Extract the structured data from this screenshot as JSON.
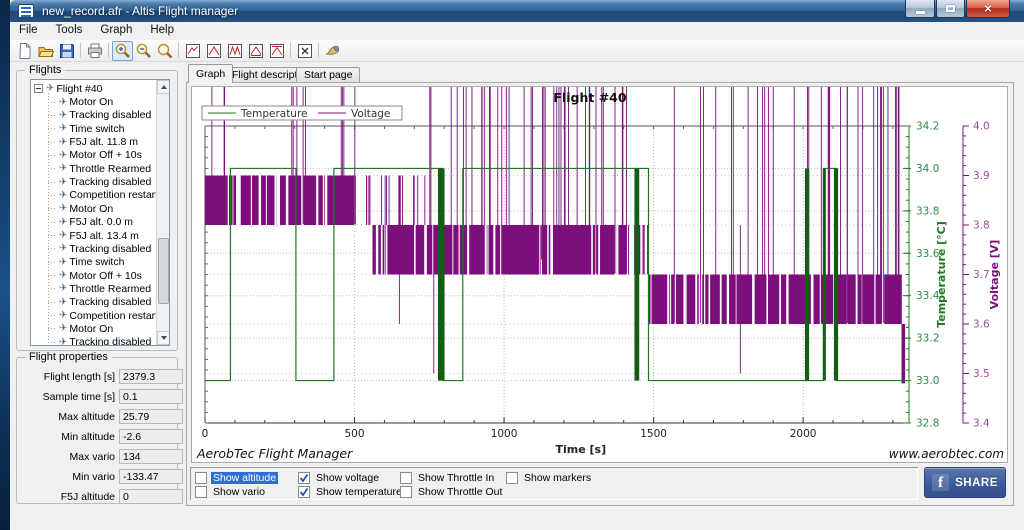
{
  "window": {
    "title": "new_record.afr - Altis Flight manager",
    "controls": [
      "minimize",
      "maximize",
      "close"
    ]
  },
  "menu": {
    "items": [
      "File",
      "Tools",
      "Graph",
      "Help"
    ]
  },
  "toolbar": {
    "buttons": [
      "new-file",
      "open-file",
      "save-file",
      "|",
      "print",
      "|",
      "zoom-in",
      "zoom-out",
      "zoom-fit",
      "|",
      "graph-line",
      "graph-peak",
      "graph-double-peak",
      "graph-peak-floor",
      "graph-peak-cap",
      "|",
      "clear-graph",
      "|",
      "export-image"
    ],
    "active_button": "zoom-in"
  },
  "flights_panel": {
    "title": "Flights",
    "tree_root": "Flight #40",
    "tree_children": [
      "Motor On",
      "Tracking disabled",
      "Time switch",
      "F5J alt. 11.8 m",
      "Motor Off + 10s",
      "Throttle Rearmed",
      "Tracking disabled",
      "Competition restart",
      "Motor On",
      "F5J alt. 0.0 m",
      "F5J alt. 13.4 m",
      "Tracking disabled",
      "Time switch",
      "Motor Off + 10s",
      "Throttle Rearmed",
      "Tracking disabled",
      "Competition restart",
      "Motor On",
      "Tracking disabled"
    ]
  },
  "properties_panel": {
    "title": "Flight properties",
    "fields": [
      {
        "label": "Flight length [s]",
        "value": "2379.3"
      },
      {
        "label": "Sample time [s]",
        "value": "0.1"
      },
      {
        "label": "Max altitude",
        "value": "25.79"
      },
      {
        "label": "Min altitude",
        "value": "-2.6"
      },
      {
        "label": "Max vario",
        "value": "134"
      },
      {
        "label": "Min vario",
        "value": "-133.47"
      },
      {
        "label": "F5J altitude",
        "value": "0"
      }
    ]
  },
  "tabs": [
    {
      "label": "Graph",
      "active": true
    },
    {
      "label": "Flight description",
      "active": false
    },
    {
      "label": "Start page",
      "active": false
    }
  ],
  "controls_bar": {
    "checkboxes": [
      {
        "label": "Show altitude",
        "checked": false,
        "highlighted": true,
        "col": 0,
        "row": 0
      },
      {
        "label": "Show vario",
        "checked": false,
        "highlighted": false,
        "col": 0,
        "row": 1
      },
      {
        "label": "Show voltage",
        "checked": true,
        "highlighted": false,
        "col": 1,
        "row": 0
      },
      {
        "label": "Show temperature",
        "checked": true,
        "highlighted": false,
        "col": 1,
        "row": 1
      },
      {
        "label": "Show Throttle In",
        "checked": false,
        "highlighted": false,
        "col": 2,
        "row": 0
      },
      {
        "label": "Show Throttle Out",
        "checked": false,
        "highlighted": false,
        "col": 2,
        "row": 1
      },
      {
        "label": "Show markers",
        "checked": false,
        "highlighted": false,
        "col": 3,
        "row": 0
      }
    ],
    "share": {
      "label": "SHARE",
      "icon": "facebook-f",
      "color": "#3b5998"
    }
  },
  "footer_texts": {
    "left": "AerobTec Flight Manager",
    "right": "www.aerobtec.com"
  },
  "chart_data": {
    "type": "line",
    "title": "Flight #40",
    "xlabel": "Time [s]",
    "x_range": [
      0,
      2344
    ],
    "x_major_ticks": [
      0,
      500,
      1000,
      1500,
      2000
    ],
    "x_minor_step": 100,
    "grid": "dotted",
    "legend": {
      "position": "top-left",
      "entries": [
        "Temperature",
        "Voltage"
      ]
    },
    "axes": {
      "temperature": {
        "label": "Temperature [°C]",
        "color": "#217821",
        "label_color": "#2c8a4a",
        "side": "right-inner",
        "range": [
          32.8,
          34.2
        ],
        "major_step": 0.2,
        "minor_step": 0.05
      },
      "voltage": {
        "label": "Voltage [V]",
        "color": "#7d0f7d",
        "label_color": "#965196",
        "side": "right-outer",
        "range": [
          3.4,
          4.0
        ],
        "major_step": 0.1,
        "minor_step": 0.02
      }
    },
    "series": [
      {
        "name": "Temperature",
        "axis": "temperature",
        "color": "#217821",
        "burst_color": "#135e13",
        "shape": "square-wave",
        "segments": [
          {
            "t0": 0,
            "t1": 85,
            "value": 33.0
          },
          {
            "t0": 85,
            "t1": 304,
            "value": 34.0
          },
          {
            "t0": 304,
            "t1": 431,
            "value": 33.0
          },
          {
            "t0": 431,
            "t1": 795,
            "value": 34.0
          },
          {
            "t0": 795,
            "t1": 862,
            "value": 33.0
          },
          {
            "t0": 862,
            "t1": 1483,
            "value": 34.0
          },
          {
            "t0": 1483,
            "t1": 2068,
            "value": 33.0
          },
          {
            "t0": 2068,
            "t1": 2112,
            "value": 34.0
          },
          {
            "t0": 2112,
            "t1": 2344,
            "value": 33.0
          }
        ],
        "oscillation_bursts": [
          {
            "t": 790,
            "width_s": 22
          },
          {
            "t": 1444,
            "width_s": 16
          },
          {
            "t": 2013,
            "width_s": 14
          },
          {
            "t": 2071,
            "width_s": 9
          },
          {
            "t": 2110,
            "width_s": 14
          }
        ],
        "burst_span": [
          33.0,
          34.0
        ]
      },
      {
        "name": "Voltage",
        "axis": "voltage",
        "color": "#7d0f7d",
        "shape": "noisy-band",
        "bands": [
          {
            "t0": 0,
            "t1": 505,
            "high": 3.9,
            "low": 3.8,
            "density": "dense",
            "gap_count": 16,
            "spike_count": 12,
            "spike_bias": "uniform"
          },
          {
            "t0": 505,
            "t1": 745,
            "high": 3.9,
            "low": 3.8,
            "density": "sparse",
            "line_count": 16
          },
          {
            "t0": 560,
            "t1": 1410,
            "high": 3.8,
            "low": 3.7,
            "density": "dense",
            "gap_count": 26,
            "spike_count": 42,
            "spike_bias": "end"
          },
          {
            "t0": 1410,
            "t1": 1482,
            "high": 3.8,
            "low": 3.7,
            "density": "sparse",
            "line_count": 10
          },
          {
            "t0": 1483,
            "t1": 2330,
            "high": 3.7,
            "low": 3.6,
            "density": "dense",
            "gap_count": 30,
            "spike_count": 34,
            "spike_bias": "end"
          }
        ],
        "spike_depth_v": 0.1,
        "strays": [
          {
            "t": 650,
            "from": 3.9,
            "to": 3.6
          },
          {
            "t": 765,
            "from": 3.8,
            "to": 3.5
          },
          {
            "t": 1125,
            "from": 3.8,
            "to": 3.73
          },
          {
            "t": 1790,
            "from": 3.8,
            "to": 3.5
          }
        ],
        "end_dip": {
          "t": 2335,
          "from": 3.6,
          "to": 3.48,
          "width_s": 12
        }
      }
    ]
  }
}
